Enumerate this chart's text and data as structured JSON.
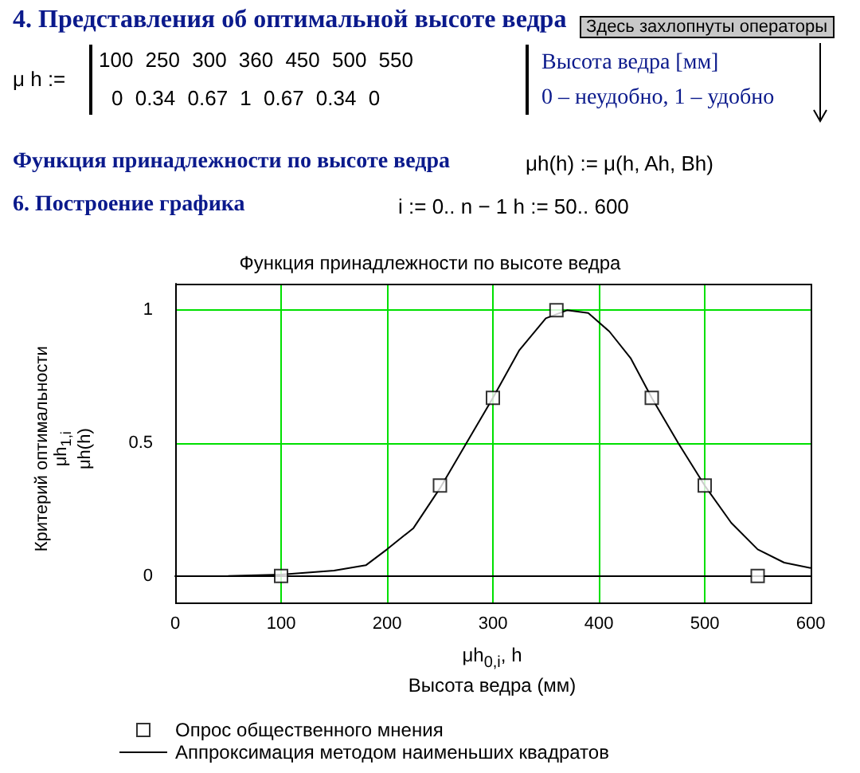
{
  "chart_data": {
    "type": "line",
    "title": "Функция принадлежности по высоте ведра",
    "xlabel": "μh$_{0,i}$, h\nВысота ведра (мм)",
    "ylabel": "Критерий оптимальности\nμh$_{1,i}$\nμh(h)",
    "annotations": [
      "4. Представления об оптимальной высоте ведра",
      "Здесь захлопнуты операторы",
      "μ h :=",
      "100   250   300   360   450   500   550",
      "0   0.34   0.67   1   0.67   0.34   0",
      "Высота ведра [мм]",
      "0 – неудобно, 1 – удобно",
      "Функция принадлежности по высоте ведра",
      "μh(h) := μ(h, Ah, Bh)",
      "6. Построение графика",
      "i := 0.. n − 1     h := 50.. 600"
    ],
    "series": [
      {
        "name": "Опрос общественного мнения",
        "type": "scatter",
        "color": "#000000",
        "marker": "square",
        "x": [
          100,
          250,
          300,
          360,
          450,
          500,
          550
        ],
        "values": [
          0,
          0.34,
          0.67,
          1,
          0.67,
          0.34,
          0
        ]
      },
      {
        "name": "Аппроксимация методом наименьших квадратов",
        "type": "line",
        "color": "#000000",
        "marker": "none",
        "x": [
          50,
          100,
          150,
          180,
          200,
          225,
          250,
          275,
          300,
          325,
          350,
          370,
          390,
          410,
          430,
          450,
          475,
          500,
          525,
          550,
          575,
          600
        ],
        "values": [
          0,
          0.005,
          0.02,
          0.04,
          0.1,
          0.18,
          0.33,
          0.5,
          0.67,
          0.85,
          0.97,
          1,
          0.99,
          0.92,
          0.82,
          0.67,
          0.5,
          0.34,
          0.2,
          0.1,
          0.05,
          0.03
        ]
      }
    ],
    "xlim": [
      0,
      600
    ],
    "xticks": [
      0,
      100,
      200,
      300,
      400,
      500,
      600
    ],
    "ylim": [
      -0.1,
      1.1
    ],
    "yticks": [
      0,
      0.5,
      1
    ],
    "grid": true,
    "legend": "bottom"
  }
}
